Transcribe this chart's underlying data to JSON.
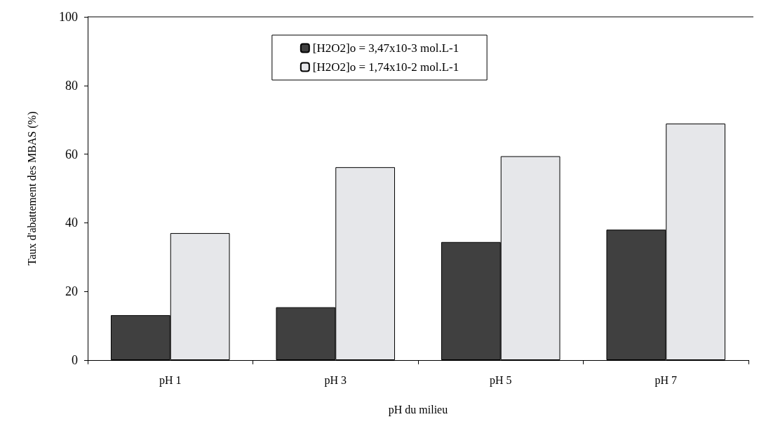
{
  "chart_data": {
    "type": "bar",
    "xlabel": "pH du milieu",
    "ylabel": "Taux d'abattement des MBAS (%)",
    "categories": [
      "pH 1",
      "pH 3",
      "pH 5",
      "pH 7"
    ],
    "series": [
      {
        "name": "[H2O2]o = 3,47x10-3 mol.L-1",
        "color": "#404040",
        "values": [
          13.1,
          15.4,
          34.4,
          38.0
        ]
      },
      {
        "name": "[H2O2]o = 1,74x10-2 mol.L-1",
        "color": "#e6e7ea",
        "values": [
          37.0,
          56.2,
          59.4,
          68.9
        ]
      }
    ],
    "ylim": [
      0,
      100
    ],
    "yticks": [
      0,
      20,
      40,
      60,
      80,
      100
    ],
    "grid": false,
    "legend": "top"
  }
}
